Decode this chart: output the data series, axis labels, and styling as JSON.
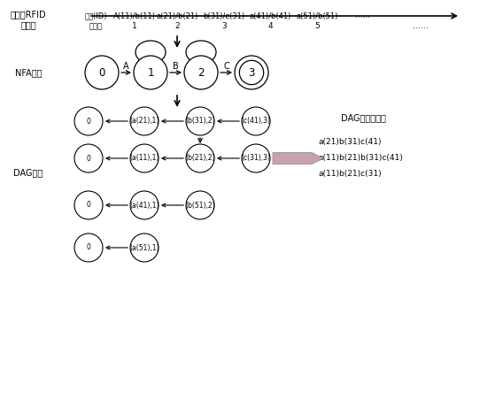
{
  "bg_color": "#ffffff",
  "left_label1": "多概率RFID\n事件流",
  "left_label2": "NFA匹配",
  "left_label3": "DAG存储",
  "top_row_label1": "事件(ID)",
  "top_row_label2": "A(11)/b(11)",
  "top_row_label3": "a(21)/b(21)",
  "top_row_label4": "b(31)/c(31)",
  "top_row_label5": "a(41)/b(41)",
  "top_row_label6": "a(51)/b(51)",
  "top_row_dots": "……",
  "time_label": "时间戳",
  "time_ticks": [
    "1",
    "2",
    "3",
    "4",
    "5",
    "……"
  ],
  "nfa_nodes": [
    "0",
    "1",
    "2",
    "3"
  ],
  "nfa_labels": [
    "A",
    "B",
    "C"
  ],
  "dag_row1": [
    "0",
    "(a(21),1)",
    "(b(31),2)",
    "(c(41),3)"
  ],
  "dag_row1_label": "DAG构造和输出",
  "dag_row2": [
    "0",
    "(a(11),1)",
    "(b(21),2)",
    "(c(31),3)"
  ],
  "dag_row3": [
    "0",
    "(a(41),1)",
    "(b(51),2)"
  ],
  "dag_row4": [
    "0",
    "(a(51),1)"
  ],
  "output_lines": [
    "a(21)b(31)c(41)",
    "a(11)b(21)b(31)c(41)",
    "a(11)b(21)c(31)"
  ],
  "arrow_color": "#c8a0b0",
  "arrow_edge_color": "#999999"
}
